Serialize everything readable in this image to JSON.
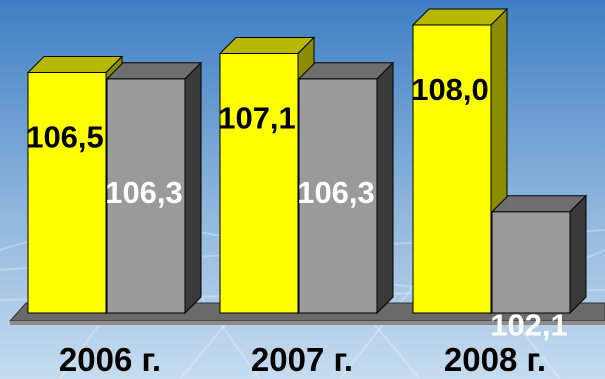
{
  "chart_data": {
    "type": "bar",
    "categories": [
      "2006 г.",
      "2007 г.",
      "2008 г."
    ],
    "series": [
      {
        "color": "#FFFF00",
        "top_color": "#B8B800",
        "side_color": "#8C8C00",
        "label_color": "#000000",
        "values": [
          106.5,
          107.1,
          108.0
        ],
        "labels": [
          "106,5",
          "107,1",
          "108,0"
        ]
      },
      {
        "color": "#9A9A9A",
        "top_color": "#6E6E6E",
        "side_color": "#3A3A3A",
        "label_color": "#FFFFFF",
        "values": [
          106.3,
          106.3,
          102.1
        ],
        "labels": [
          "106,3",
          "106,3",
          "102,1"
        ]
      }
    ],
    "ylim": [
      98.9,
      108.0
    ],
    "grid": false,
    "legend": "none",
    "three_d": true
  },
  "colors": {
    "background_top": "#3E7FC4",
    "background_bottom": "#C6DCEF",
    "floor_top": "#6A6A6A",
    "floor_side": "#8C8C8C"
  }
}
